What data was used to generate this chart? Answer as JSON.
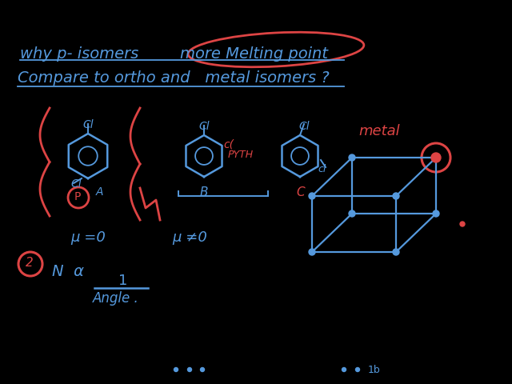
{
  "bg_color": "#000000",
  "blue_color": "#5599dd",
  "red_color": "#dd4444",
  "title_line1_a": "why p- isomers",
  "title_line1_b": "more Melting point",
  "title_line2": "Compare to ortho and   metal isomers ?",
  "mu_zero": "μ =0",
  "mu_nonzero": "μ ≠0",
  "circle_2": "2",
  "note_pyrrho": "PYTH",
  "note_B": "B",
  "note_C": "C",
  "note_metal": "metal"
}
